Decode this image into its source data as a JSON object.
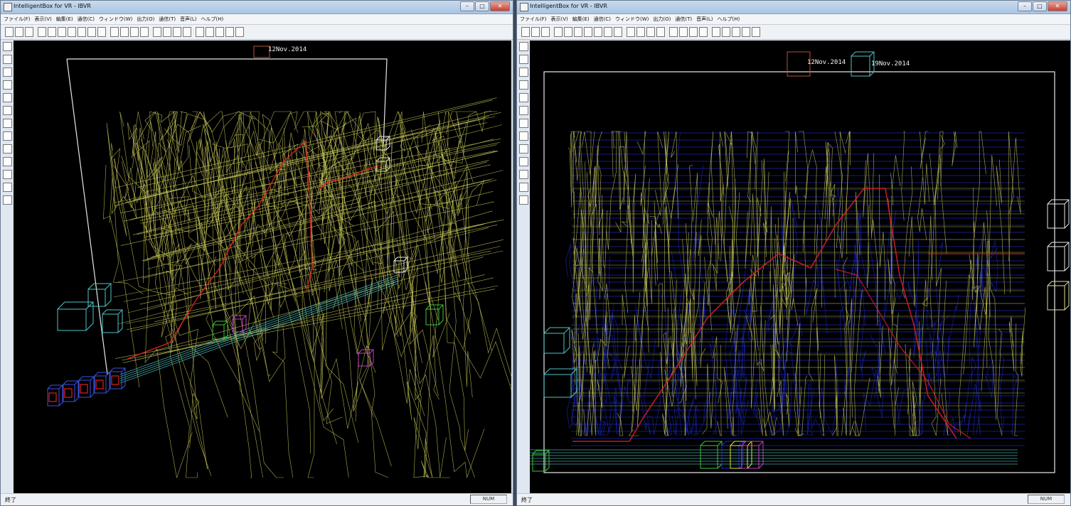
{
  "left_window": {
    "title": "IntelligentBox for VR - IBVR",
    "menu": [
      "ファイル(F)",
      "表示(V)",
      "編集(E)",
      "通信(C)",
      "ウィンドウ(W)",
      "出力(O)",
      "通信(T)",
      "音声(L)",
      "ヘルプ(H)"
    ],
    "date_labels": [
      "12Nov.2014"
    ],
    "status_text": "終了",
    "status_indicator": "NUM"
  },
  "right_window": {
    "title": "IntelligentBox for VR - IBVR",
    "menu": [
      "ファイル(F)",
      "表示(V)",
      "編集(E)",
      "通信(C)",
      "ウィンドウ(W)",
      "出力(O)",
      "通信(T)",
      "音声(L)",
      "ヘルプ(H)"
    ],
    "date_labels": [
      "12Nov.2014",
      "19Nov.2014"
    ],
    "status_text": "終了",
    "status_indicator": "NUM"
  },
  "window_buttons": {
    "minimize": "–",
    "maximize": "□",
    "close": "✕"
  },
  "colors": {
    "background": "#000000",
    "trace_yellow": "#c8c85a",
    "trace_blue": "#1c2acc",
    "highlight_red": "#e02020",
    "box_cyan": "#4fc4c4",
    "box_green": "#3ec43e",
    "box_magenta": "#c43ec4",
    "frame_white": "#e8e8e8"
  }
}
